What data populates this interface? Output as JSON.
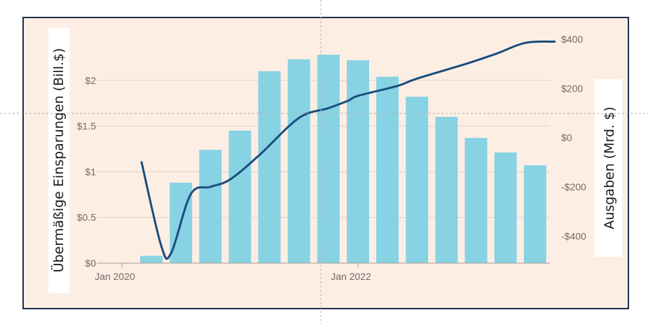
{
  "chart_data": {
    "type": "bar+line",
    "x": [
      "2020-04",
      "2020-07",
      "2020-10",
      "2021-01",
      "2021-04",
      "2021-07",
      "2021-10",
      "2022-01",
      "2022-04",
      "2022-07",
      "2022-10",
      "2023-01",
      "2023-04",
      "2023-07"
    ],
    "x_tick_labels": [
      "Jan 2020",
      "Jan 2022"
    ],
    "series": [
      {
        "axis": "left",
        "type": "bar",
        "values": [
          0.08,
          0.88,
          1.24,
          1.45,
          2.1,
          2.23,
          2.28,
          2.22,
          2.04,
          1.82,
          1.6,
          1.37,
          1.21,
          1.07
        ]
      },
      {
        "axis": "right",
        "type": "line",
        "points": [
          [
            "2020-03",
            -100
          ],
          [
            "2020-05",
            -440
          ],
          [
            "2020-06",
            -470
          ],
          [
            "2020-08",
            -230
          ],
          [
            "2020-10",
            -200
          ],
          [
            "2020-12",
            -170
          ],
          [
            "2021-03",
            -70
          ],
          [
            "2021-07",
            80
          ],
          [
            "2021-10",
            120
          ],
          [
            "2021-12",
            150
          ],
          [
            "2022-01",
            170
          ],
          [
            "2022-05",
            210
          ],
          [
            "2022-07",
            240
          ],
          [
            "2022-12",
            300
          ],
          [
            "2023-03",
            340
          ],
          [
            "2023-06",
            385
          ],
          [
            "2023-09",
            390
          ]
        ]
      }
    ],
    "y_left": {
      "label": "Übermäßige Einsparungen (Bill.$)",
      "ticks": [
        0,
        0.5,
        1,
        1.5,
        2
      ],
      "tick_labels": [
        "$0",
        "$0.5",
        "$1",
        "$1.5",
        "$2"
      ],
      "range": [
        0,
        2.45
      ]
    },
    "y_right": {
      "label": "Ausgaben (Mrd. $)",
      "ticks": [
        -400,
        -200,
        0,
        200,
        400
      ],
      "tick_labels": [
        "-$400",
        "-$200",
        "$0",
        "$200",
        "$400"
      ],
      "range": [
        -510,
        400
      ]
    },
    "grid": true,
    "colors": {
      "background": "#fdeee4",
      "frame": "#1f2d4d",
      "bar": "#87d3e4",
      "line": "#1a4d7c",
      "grid": "#d9d2cc",
      "guide": "#b0b0b0"
    }
  }
}
